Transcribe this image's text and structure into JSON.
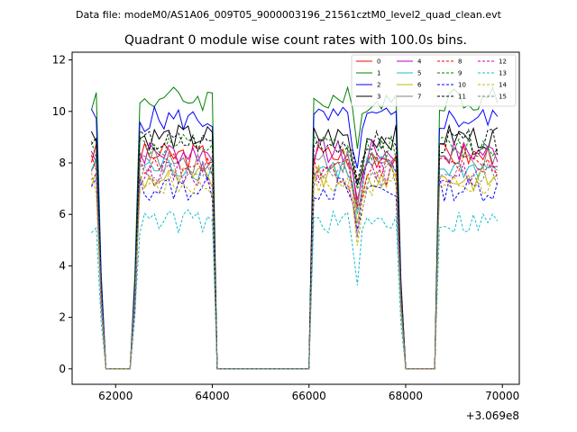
{
  "suptitle": "Data file: modeM0/AS1A06_009T05_9000003196_21561cztM0_level2_quad_clean.evt",
  "chart_data": {
    "type": "line",
    "title": "Quadrant 0 module wise count rates with 100.0s bins.",
    "xlabel": "",
    "ylabel": "",
    "x_offset_label": "+3.069e8",
    "xlim": [
      61100,
      70350
    ],
    "ylim": [
      -0.6,
      12.3
    ],
    "x_ticks": [
      62000,
      64000,
      66000,
      68000,
      70000
    ],
    "x_tick_labels": [
      "62000",
      "64000",
      "66000",
      "68000",
      "70000"
    ],
    "y_ticks": [
      0,
      2,
      4,
      6,
      8,
      10,
      12
    ],
    "y_tick_labels": [
      "0",
      "2",
      "4",
      "6",
      "8",
      "10",
      "12"
    ],
    "legend_position": "top-right",
    "segments": [
      [
        61500,
        61600
      ],
      [
        62500,
        64000
      ],
      [
        66100,
        67800
      ],
      [
        68700,
        69900
      ]
    ],
    "zero_gaps": [
      [
        61800,
        62300
      ],
      [
        64100,
        66000
      ],
      [
        68000,
        68600
      ]
    ],
    "series": [
      {
        "name": "0",
        "color": "#ff0000",
        "dash": "solid",
        "level": 8.3
      },
      {
        "name": "1",
        "color": "#008000",
        "dash": "solid",
        "level": 10.5
      },
      {
        "name": "2",
        "color": "#0000ff",
        "dash": "solid",
        "level": 9.7
      },
      {
        "name": "3",
        "color": "#000000",
        "dash": "solid",
        "level": 9.0
      },
      {
        "name": "4",
        "color": "#bf00bf",
        "dash": "solid",
        "level": 8.4
      },
      {
        "name": "5",
        "color": "#17becf",
        "dash": "solid",
        "level": 7.8
      },
      {
        "name": "6",
        "color": "#c8b400",
        "dash": "solid",
        "level": 7.4
      },
      {
        "name": "7",
        "color": "#808080",
        "dash": "solid",
        "level": 8.1
      },
      {
        "name": "8",
        "color": "#ff0000",
        "dash": "dashed",
        "level": 7.9
      },
      {
        "name": "9",
        "color": "#008000",
        "dash": "dashed",
        "level": 8.6
      },
      {
        "name": "10",
        "color": "#0000ff",
        "dash": "dashed",
        "level": 7.0
      },
      {
        "name": "11",
        "color": "#000000",
        "dash": "dashed",
        "level": 8.8
      },
      {
        "name": "12",
        "color": "#bf00bf",
        "dash": "dashed",
        "level": 7.6
      },
      {
        "name": "13",
        "color": "#17becf",
        "dash": "dashed",
        "level": 5.7
      },
      {
        "name": "14",
        "color": "#c8b400",
        "dash": "dashed",
        "level": 7.2
      },
      {
        "name": "15",
        "color": "#808080",
        "dash": "dashed",
        "level": 7.5
      }
    ]
  }
}
